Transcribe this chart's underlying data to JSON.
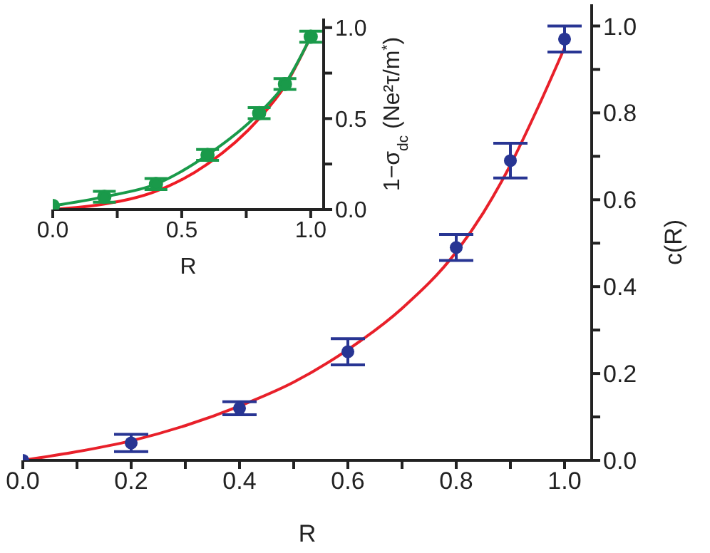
{
  "chart_data": [
    {
      "type": "scatter",
      "xlabel": "R",
      "ylabel": "c(R)",
      "xlim": [
        0,
        1.05
      ],
      "ylim": [
        0,
        1.05
      ],
      "xticks": [
        {
          "value": 0,
          "label": "0.0"
        },
        {
          "value": 0.1,
          "label": null
        },
        {
          "value": 0.2,
          "label": "0.2"
        },
        {
          "value": 0.3,
          "label": null
        },
        {
          "value": 0.4,
          "label": "0.4"
        },
        {
          "value": 0.5,
          "label": null
        },
        {
          "value": 0.6,
          "label": "0.6"
        },
        {
          "value": 0.7,
          "label": null
        },
        {
          "value": 0.8,
          "label": "0.8"
        },
        {
          "value": 0.9,
          "label": null
        },
        {
          "value": 1,
          "label": "1.0"
        }
      ],
      "yticks": [
        {
          "value": 0,
          "label": "0.0"
        },
        {
          "value": 0.1,
          "label": null
        },
        {
          "value": 0.2,
          "label": "0.2"
        },
        {
          "value": 0.3,
          "label": null
        },
        {
          "value": 0.4,
          "label": "0.4"
        },
        {
          "value": 0.5,
          "label": null
        },
        {
          "value": 0.6,
          "label": "0.6"
        },
        {
          "value": 0.7,
          "label": null
        },
        {
          "value": 0.8,
          "label": "0.8"
        },
        {
          "value": 0.9,
          "label": null
        },
        {
          "value": 1,
          "label": "1.0"
        }
      ],
      "series": [
        {
          "type": "line",
          "color": "#e8202a",
          "marker": "none",
          "x": [
            0,
            0.1,
            0.2,
            0.3,
            0.4,
            0.5,
            0.6,
            0.7,
            0.8,
            0.85,
            0.9,
            0.95,
            1.0
          ],
          "values": [
            0,
            0.02,
            0.045,
            0.08,
            0.125,
            0.18,
            0.255,
            0.35,
            0.48,
            0.57,
            0.68,
            0.81,
            0.95
          ]
        },
        {
          "color": "#283593",
          "marker": "circle",
          "x": [
            0,
            0.2,
            0.4,
            0.6,
            0.8,
            0.9,
            1.0
          ],
          "values": [
            0,
            0.04,
            0.12,
            0.25,
            0.49,
            0.69,
            0.97
          ],
          "errors": [
            null,
            0.02,
            0.015,
            0.03,
            0.03,
            0.04,
            0.03
          ]
        }
      ],
      "grid": false,
      "legend": false
    },
    {
      "type": "line",
      "xlabel": "R",
      "ylabel": "1−σ$_{dc}$ (Ne²τ/m$^{*}$)",
      "xlim": [
        0,
        1.05
      ],
      "ylim": [
        0,
        1.05
      ],
      "xticks": [
        {
          "value": 0,
          "label": "0.0"
        },
        {
          "value": 0.25,
          "label": null
        },
        {
          "value": 0.5,
          "label": "0.5"
        },
        {
          "value": 0.75,
          "label": null
        },
        {
          "value": 1,
          "label": "1.0"
        }
      ],
      "yticks": [
        {
          "value": 0,
          "label": "0.0"
        },
        {
          "value": 0.25,
          "label": null
        },
        {
          "value": 0.5,
          "label": "0.5"
        },
        {
          "value": 0.75,
          "label": null
        },
        {
          "value": 1,
          "label": "1.0"
        }
      ],
      "series": [
        {
          "color": "#ee1c25",
          "marker": "none",
          "x": [
            0,
            0.2,
            0.4,
            0.6,
            0.8,
            0.9,
            1.0
          ],
          "values": [
            0,
            0.03,
            0.1,
            0.25,
            0.5,
            0.68,
            0.95
          ]
        },
        {
          "color": "#1a9a4a",
          "marker": "circle",
          "x": [
            0,
            0.2,
            0.4,
            0.6,
            0.8,
            0.9,
            1.0
          ],
          "values": [
            0.02,
            0.07,
            0.14,
            0.3,
            0.53,
            0.69,
            0.95
          ],
          "errors": [
            null,
            0.03,
            0.03,
            0.03,
            0.03,
            0.03,
            0.03
          ]
        }
      ],
      "grid": false,
      "legend": false
    }
  ]
}
